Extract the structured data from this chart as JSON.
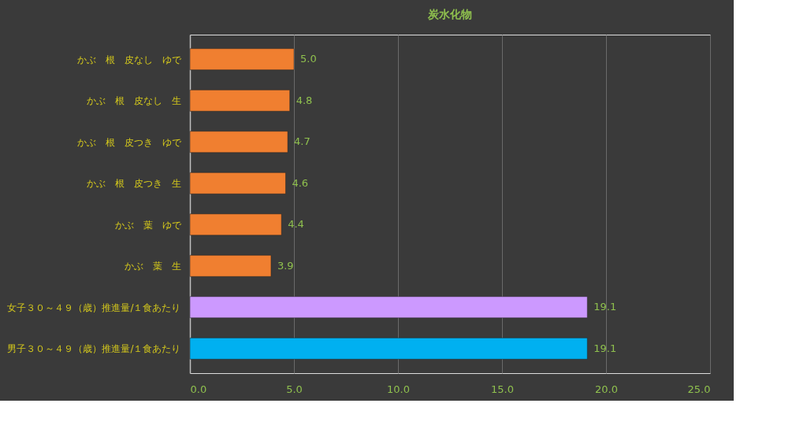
{
  "chart_data": {
    "type": "bar",
    "orientation": "horizontal",
    "title": "炭水化物",
    "categories": [
      "かぶ　根　皮なし　ゆで",
      "かぶ　根　皮なし　生",
      "かぶ　根　皮つき　ゆで",
      "かぶ　根　皮つき　生",
      "かぶ　葉　ゆで",
      "かぶ　葉　生",
      "女子３０～４９（歳）推進量/１食あたり",
      "男子３０～４９（歳）推進量/１食あたり"
    ],
    "values": [
      5.0,
      4.8,
      4.7,
      4.6,
      4.4,
      3.9,
      19.1,
      19.1
    ],
    "value_labels": [
      "5.0",
      "4.8",
      "4.7",
      "4.6",
      "4.4",
      "3.9",
      "19.1",
      "19.1"
    ],
    "colors": [
      "#f07f30",
      "#f07f30",
      "#f07f30",
      "#f07f30",
      "#f07f30",
      "#f07f30",
      "#cc99ff",
      "#00b0f0"
    ],
    "xlim": [
      0,
      25
    ],
    "xticks": [
      {
        "value": 0,
        "label": "0.0"
      },
      {
        "value": 5,
        "label": "5.0"
      },
      {
        "value": 10,
        "label": "10.0"
      },
      {
        "value": 15,
        "label": "15.0"
      },
      {
        "value": 20,
        "label": "20.0"
      },
      {
        "value": 25,
        "label": "25.0"
      }
    ],
    "grid": "x"
  }
}
